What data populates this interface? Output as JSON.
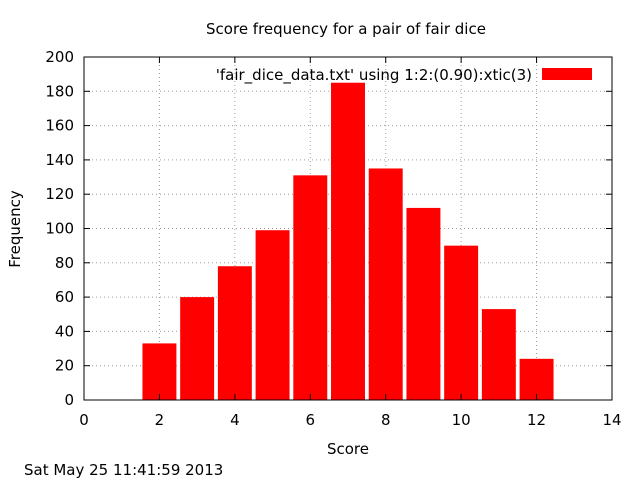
{
  "chart_data": {
    "type": "bar",
    "title": "Score frequency for a pair of fair dice",
    "xlabel": "Score",
    "ylabel": "Frequency",
    "xlim": [
      0,
      14
    ],
    "ylim": [
      0,
      200
    ],
    "xticks": [
      0,
      2,
      4,
      6,
      8,
      10,
      12,
      14
    ],
    "yticks": [
      0,
      20,
      40,
      60,
      80,
      100,
      120,
      140,
      160,
      180,
      200
    ],
    "bar_width": 0.9,
    "grid": true,
    "legend_position": "top-right",
    "color": "#ff0000",
    "series": [
      {
        "name": "'fair_dice_data.txt' using 1:2:(0.90):xtic(3)",
        "x": [
          2,
          3,
          4,
          5,
          6,
          7,
          8,
          9,
          10,
          11,
          12
        ],
        "values": [
          33,
          60,
          78,
          99,
          131,
          185,
          135,
          112,
          90,
          53,
          24
        ]
      }
    ]
  },
  "timestamp": "Sat May 25 11:41:59 2013"
}
